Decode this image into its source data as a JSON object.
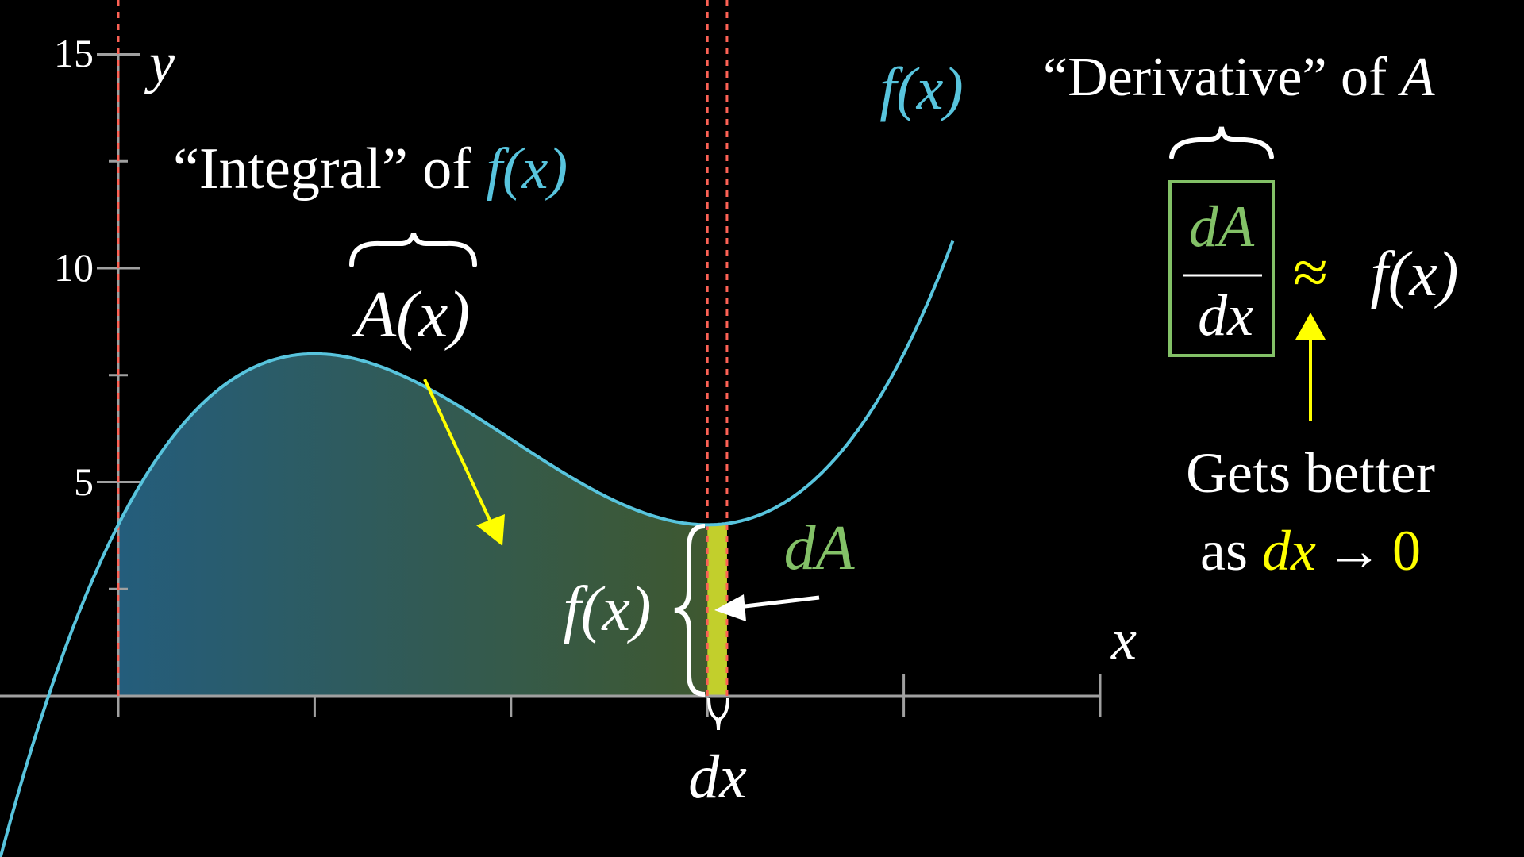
{
  "axes": {
    "x_label": "x",
    "y_label": "y",
    "y_tick_labels": [
      "5",
      "10",
      "15"
    ],
    "y_ticks": [
      5,
      10,
      15
    ],
    "x_range": [
      0,
      5
    ],
    "y_range": [
      0,
      15
    ]
  },
  "curve": {
    "label": "f(x)",
    "polynomial_coefficients_high_to_low": [
      1,
      -6,
      9,
      4
    ],
    "color": "#58C4DD"
  },
  "area": {
    "from_x": 0,
    "to_x": 3,
    "color_left": "#245d7c",
    "color_right": "#3e5830"
  },
  "strip": {
    "from_x": 3,
    "to_x": 3.1,
    "color": "#c2cf2c"
  },
  "guide_lines_x": [
    0,
    3,
    3.1
  ],
  "guide_line_color": "#FC6255",
  "annotations": {
    "integral_title_prefix": "“Integral” of ",
    "integral_title_fx": "f(x)",
    "area_label": "A(x)",
    "height_label": "f(x)",
    "dA_label": "dA",
    "dx_label": "dx",
    "derivative_title": "“Derivative” of ",
    "derivative_title_A": "A",
    "fraction_numerator": "dA",
    "fraction_denominator": "dx",
    "approx_symbol": "≈",
    "approx_rhs": "f(x)",
    "note_line1": "Gets better",
    "note_line2_prefix": "as ",
    "note_line2_dx": "dx",
    "note_line2_arrow": "→",
    "note_line2_zero": "0"
  },
  "colors": {
    "blue": "#58C4DD",
    "green": "#83C167",
    "yellow": "#FFFF00",
    "axis": "#a0a0a0"
  }
}
